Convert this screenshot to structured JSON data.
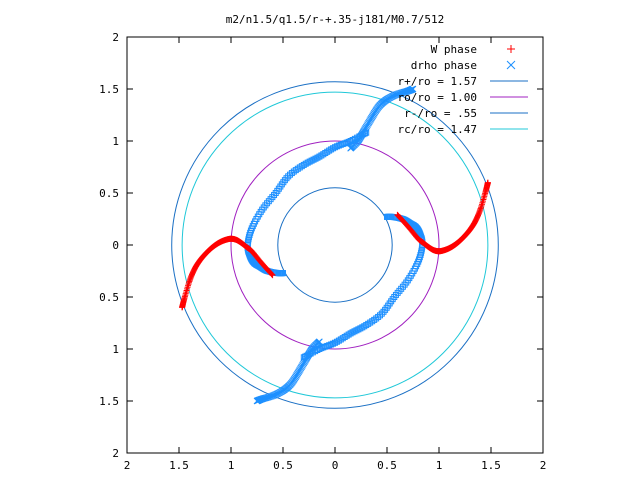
{
  "chart_data": {
    "type": "scatter",
    "title": "m2/n1.5/q1.5/r-+.35-j181/M0.7/512",
    "xlim": [
      -2,
      2
    ],
    "ylim": [
      -2,
      2
    ],
    "x_ticks": [
      -2,
      -1.5,
      -1,
      -0.5,
      0,
      0.5,
      1,
      1.5,
      2
    ],
    "y_ticks": [
      -2,
      -1.5,
      -1,
      -0.5,
      0,
      0.5,
      1,
      1.5,
      2
    ],
    "x_tick_labels": [
      "2",
      "1.5",
      "1",
      "0.5",
      "0",
      "0.5",
      "1",
      "1.5",
      "2"
    ],
    "y_tick_labels": [
      "2",
      "1.5",
      "1",
      "0.5",
      "0",
      "0.5",
      "1",
      "1.5",
      "2"
    ],
    "grid": false,
    "legend_position": "top-right",
    "legend": [
      {
        "label": "W phase",
        "kind": "point",
        "marker": "plus",
        "color": "#ff0000"
      },
      {
        "label": "drho phase",
        "kind": "point",
        "marker": "cross",
        "color": "#1e90ff"
      },
      {
        "label": "r+/ro = 1.57",
        "kind": "line",
        "color": "#1a6fc4"
      },
      {
        "label": "ro/ro = 1.00",
        "kind": "line",
        "color": "#a020c0"
      },
      {
        "label": "r-/ro = .55",
        "kind": "line",
        "color": "#1a6fc4"
      },
      {
        "label": "rc/ro = 1.47",
        "kind": "line",
        "color": "#20c8d8"
      }
    ],
    "circles": [
      {
        "r": 1.57,
        "color": "#1a6fc4"
      },
      {
        "r": 1.0,
        "color": "#a020c0"
      },
      {
        "r": 0.55,
        "color": "#1a6fc4"
      },
      {
        "r": 1.47,
        "color": "#20c8d8"
      }
    ],
    "w_phase_arm": {
      "color": "#ff0000",
      "points": [
        [
          0.6,
          0.29
        ],
        [
          0.7,
          0.18
        ],
        [
          0.8,
          0.06
        ],
        [
          0.85,
          0.02
        ],
        [
          0.9,
          -0.02
        ],
        [
          0.95,
          -0.05
        ],
        [
          1.0,
          -0.06
        ],
        [
          1.05,
          -0.05
        ],
        [
          1.1,
          -0.03
        ],
        [
          1.15,
          0.0
        ],
        [
          1.2,
          0.04
        ],
        [
          1.25,
          0.09
        ],
        [
          1.3,
          0.15
        ],
        [
          1.35,
          0.23
        ],
        [
          1.4,
          0.35
        ],
        [
          1.45,
          0.52
        ],
        [
          1.47,
          0.6
        ]
      ]
    },
    "drho_phase_arm": {
      "color": "#1e90ff",
      "points": [
        [
          0.3,
          1.08
        ],
        [
          0.15,
          1.0
        ],
        [
          0.0,
          0.94
        ],
        [
          -0.15,
          0.85
        ],
        [
          -0.3,
          0.77
        ],
        [
          -0.45,
          0.66
        ],
        [
          -0.57,
          0.5
        ],
        [
          -0.7,
          0.34
        ],
        [
          -0.8,
          0.16
        ],
        [
          -0.84,
          0.0
        ],
        [
          -0.82,
          -0.1
        ],
        [
          -0.78,
          -0.17
        ],
        [
          -0.72,
          -0.21
        ],
        [
          -0.65,
          -0.25
        ],
        [
          -0.55,
          -0.27
        ],
        [
          -0.5,
          -0.27
        ]
      ]
    },
    "drho_phase_arm_tail": {
      "color": "#1e90ff",
      "points": [
        [
          0.15,
          0.93
        ],
        [
          0.22,
          1.0
        ],
        [
          0.28,
          1.1
        ],
        [
          0.35,
          1.22
        ],
        [
          0.42,
          1.33
        ],
        [
          0.5,
          1.4
        ],
        [
          0.6,
          1.45
        ],
        [
          0.7,
          1.48
        ],
        [
          0.75,
          1.5
        ]
      ]
    }
  }
}
